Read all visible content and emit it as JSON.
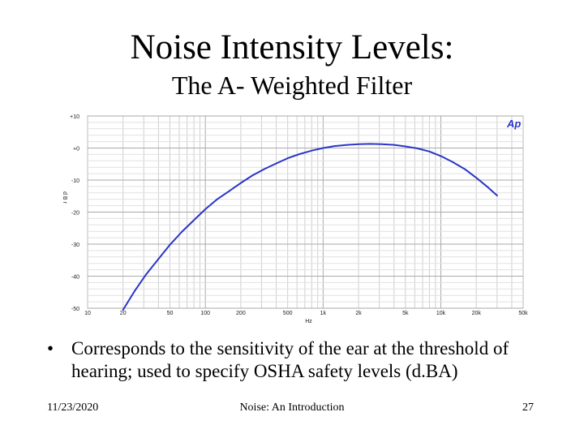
{
  "slide": {
    "title": "Noise Intensity Levels:",
    "subtitle": "The A- Weighted Filter",
    "bullet_symbol": "•",
    "bullet_text": "Corresponds to the sensitivity of the ear at the threshold of hearing; used to specify OSHA safety levels (d.BA)",
    "footer": {
      "date": "11/23/2020",
      "center": "Noise: An Introduction",
      "page": "27"
    }
  },
  "chart_data": {
    "type": "line",
    "title": "",
    "xlabel": "Hz",
    "ylabel": "d B r",
    "x_scale": "log",
    "xlim": [
      10,
      50000
    ],
    "ylim": [
      -50,
      10
    ],
    "x_ticks": [
      10,
      20,
      50,
      100,
      200,
      500,
      1000,
      2000,
      5000,
      10000,
      20000,
      50000
    ],
    "x_tick_labels": [
      "10",
      "20",
      "50",
      "100",
      "200",
      "500",
      "1k",
      "2k",
      "5k",
      "10k",
      "20k",
      "50k"
    ],
    "y_ticks": [
      10,
      0,
      -10,
      -20,
      -30,
      -40,
      -50
    ],
    "y_tick_labels": [
      "+10",
      "+0",
      "-10",
      "-20",
      "-30",
      "-40",
      "-50"
    ],
    "grid": true,
    "logo": "Ap",
    "line_color": "#2a35c8",
    "series": [
      {
        "x": [
          20,
          25,
          31.5,
          40,
          50,
          63,
          80,
          100,
          125,
          160,
          200,
          250,
          315,
          400,
          500,
          630,
          800,
          1000,
          1250,
          1600,
          2000,
          2500,
          3150,
          4000,
          5000,
          6300,
          8000,
          10000,
          12500,
          16000,
          20000,
          25000,
          30000
        ],
        "y": [
          -50.5,
          -44.7,
          -39.4,
          -34.6,
          -30.2,
          -26.2,
          -22.5,
          -19.1,
          -16.1,
          -13.4,
          -10.9,
          -8.6,
          -6.6,
          -4.8,
          -3.2,
          -1.9,
          -0.8,
          0,
          0.6,
          1.0,
          1.2,
          1.3,
          1.2,
          1.0,
          0.5,
          -0.1,
          -1.1,
          -2.5,
          -4.3,
          -6.6,
          -9.3,
          -12.2,
          -14.8
        ]
      }
    ]
  }
}
